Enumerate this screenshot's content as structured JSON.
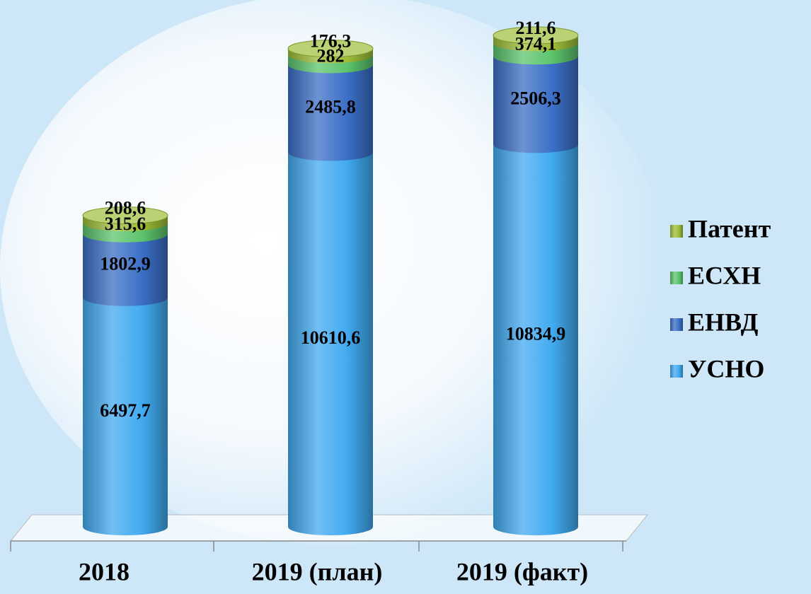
{
  "chart_data": {
    "type": "stacked-cylinder",
    "categories": [
      "2018",
      "2019 (план)",
      "2019 (факт)"
    ],
    "series": [
      {
        "name": "УСНО",
        "color": "#41aaf0",
        "values": [
          6497.7,
          10610.6,
          10834.9
        ],
        "value_labels": [
          "6497,7",
          "10610,6",
          "10834,9"
        ]
      },
      {
        "name": "ЕНВД",
        "color": "#3b6fc6",
        "values": [
          1802.9,
          2485.8,
          2506.3
        ],
        "value_labels": [
          "1802,9",
          "2485,8",
          "2506,3"
        ]
      },
      {
        "name": "ЕСХН",
        "color": "#5cc46c",
        "values": [
          315.6,
          282,
          374.1
        ],
        "value_labels": [
          "315,6",
          "282",
          "374,1"
        ]
      },
      {
        "name": "Патент",
        "color": "#9dbd38",
        "values": [
          208.6,
          176.3,
          211.6
        ],
        "value_labels": [
          "208,6",
          "176,3",
          "211,6"
        ]
      }
    ]
  }
}
